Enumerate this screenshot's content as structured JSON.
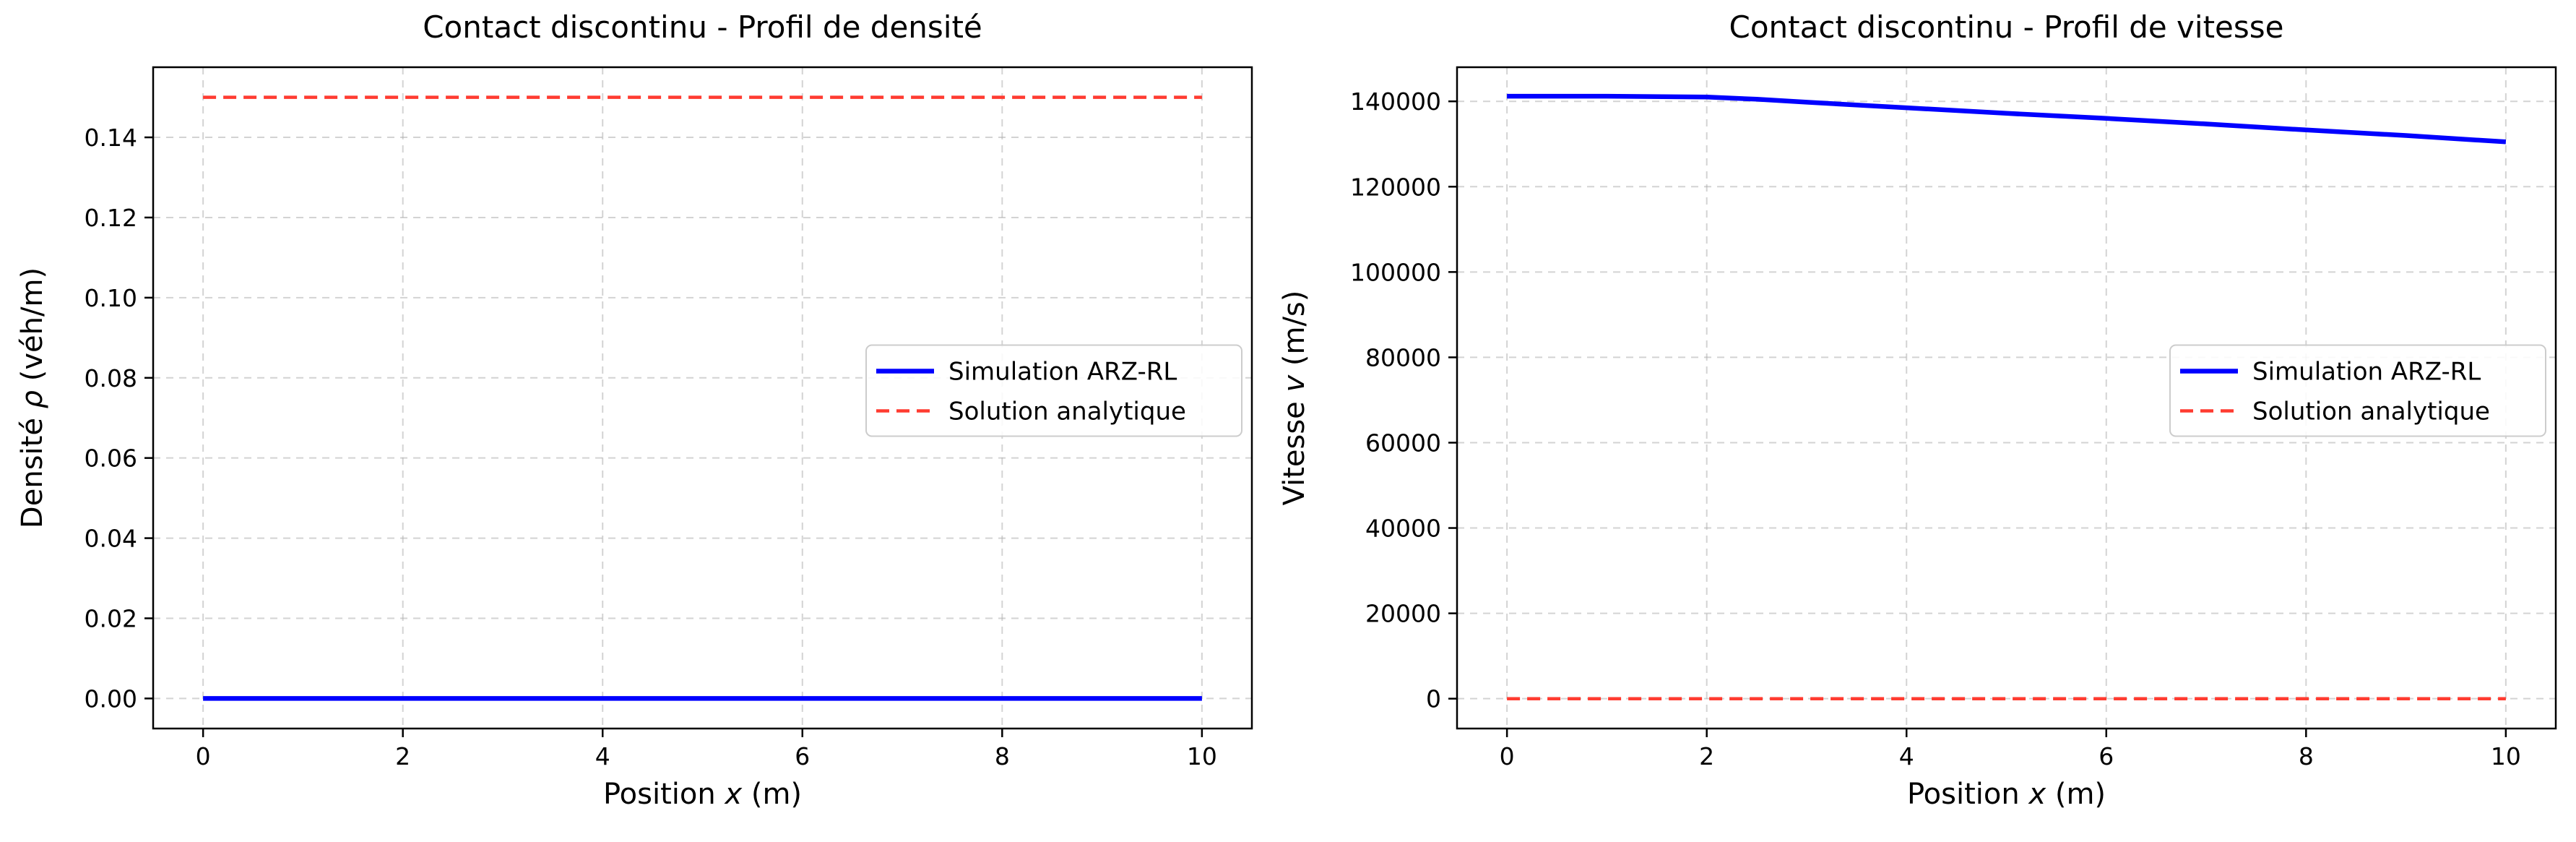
{
  "chart_data": [
    {
      "type": "line",
      "title": "Contact discontinu - Profil de densité",
      "xlabel": "Position $x$ (m)",
      "ylabel": "Densité $\\rho$ (véh/m)",
      "xlim": [
        -0.5,
        10.5
      ],
      "ylim": [
        -0.0075,
        0.1575
      ],
      "xticks": [
        0,
        2,
        4,
        6,
        8,
        10
      ],
      "yticks": [
        0.0,
        0.02,
        0.04,
        0.06,
        0.08,
        0.1,
        0.12,
        0.14
      ],
      "xtick_labels": [
        "0",
        "2",
        "4",
        "6",
        "8",
        "10"
      ],
      "ytick_labels": [
        "0.00",
        "0.02",
        "0.04",
        "0.06",
        "0.08",
        "0.10",
        "0.12",
        "0.14"
      ],
      "grid": true,
      "legend_position": "center-right",
      "series": [
        {
          "name": "Simulation ARZ-RL",
          "color": "#0000ff",
          "style": "solid",
          "x": [
            0,
            10
          ],
          "y": [
            0.0,
            0.0
          ]
        },
        {
          "name": "Solution analytique",
          "color": "#ff3b30",
          "style": "dashed",
          "x": [
            0,
            10
          ],
          "y": [
            0.15,
            0.15
          ]
        }
      ]
    },
    {
      "type": "line",
      "title": "Contact discontinu - Profil de vitesse",
      "xlabel": "Position $x$ (m)",
      "ylabel": "Vitesse $v$ (m/s)",
      "xlim": [
        -0.5,
        10.5
      ],
      "ylim": [
        -7000,
        148000
      ],
      "xticks": [
        0,
        2,
        4,
        6,
        8,
        10
      ],
      "yticks": [
        0,
        20000,
        40000,
        60000,
        80000,
        100000,
        120000,
        140000
      ],
      "xtick_labels": [
        "0",
        "2",
        "4",
        "6",
        "8",
        "10"
      ],
      "ytick_labels": [
        "0",
        "20000",
        "40000",
        "60000",
        "80000",
        "100000",
        "120000",
        "140000"
      ],
      "grid": true,
      "legend_position": "center-right",
      "series": [
        {
          "name": "Simulation ARZ-RL",
          "color": "#0000ff",
          "style": "solid",
          "x": [
            0,
            1,
            2,
            2.5,
            3,
            4,
            5,
            6,
            7,
            8,
            9,
            10
          ],
          "y": [
            141200,
            141200,
            141000,
            140500,
            139800,
            138500,
            137200,
            136000,
            134700,
            133300,
            132000,
            130500
          ]
        },
        {
          "name": "Solution analytique",
          "color": "#ff3b30",
          "style": "dashed",
          "x": [
            0,
            10
          ],
          "y": [
            0,
            0
          ]
        }
      ]
    }
  ]
}
